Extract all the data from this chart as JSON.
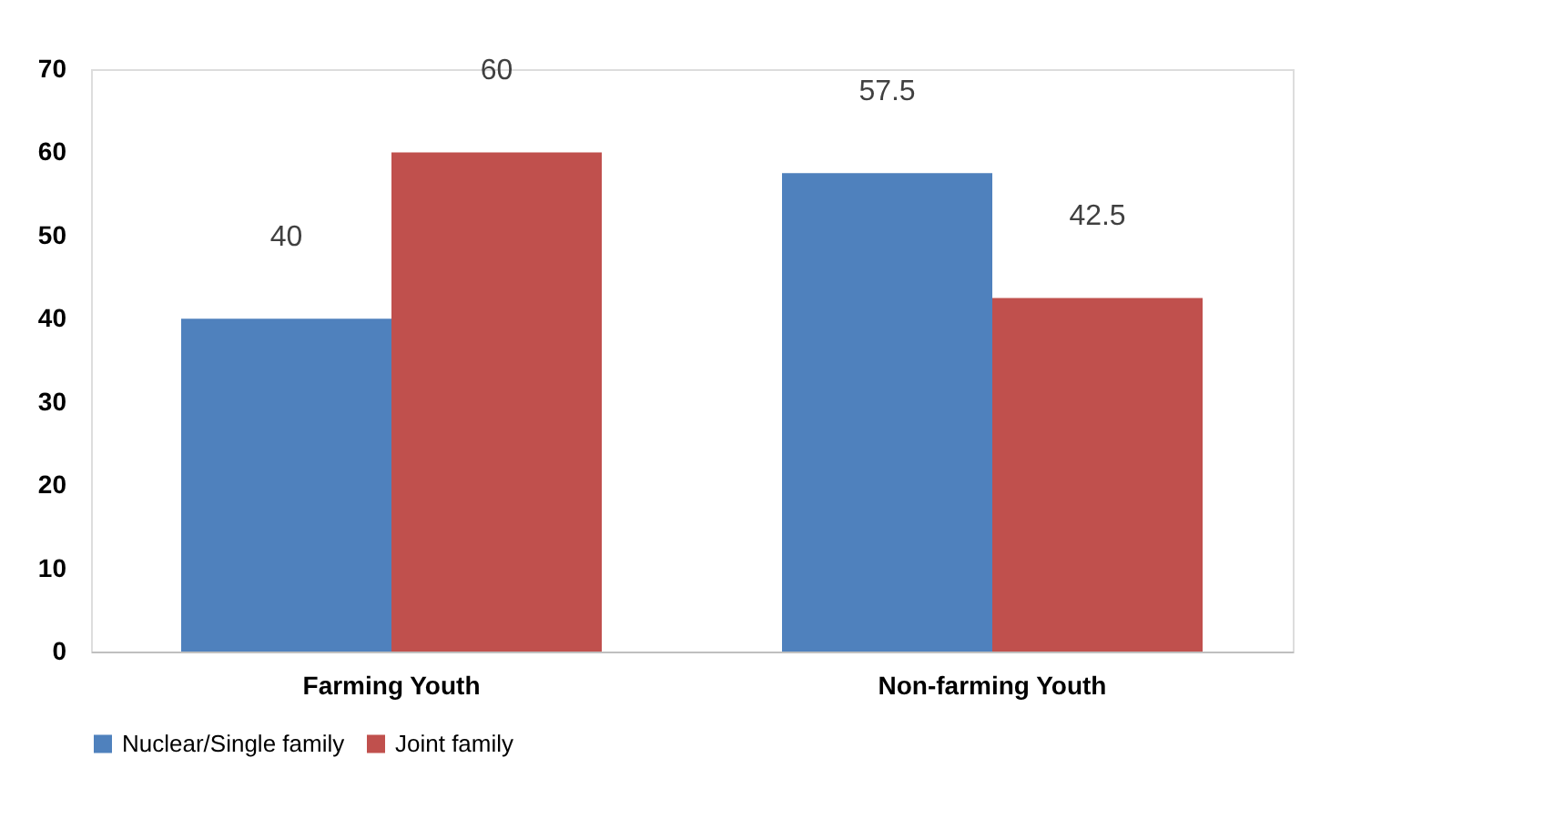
{
  "chart_data": {
    "type": "bar",
    "categories": [
      "Farming Youth",
      "Non-farming Youth"
    ],
    "series": [
      {
        "name": "Nuclear/Single family",
        "color": "#4f81bd",
        "values": [
          40,
          57.5
        ]
      },
      {
        "name": "Joint family",
        "color": "#c0504d",
        "values": [
          60,
          42.5
        ]
      }
    ],
    "ylim": [
      0,
      70
    ],
    "yticks": [
      0,
      10,
      20,
      30,
      40,
      50,
      60,
      70
    ],
    "grid": false,
    "legend": "bottom",
    "data_labels": true
  }
}
